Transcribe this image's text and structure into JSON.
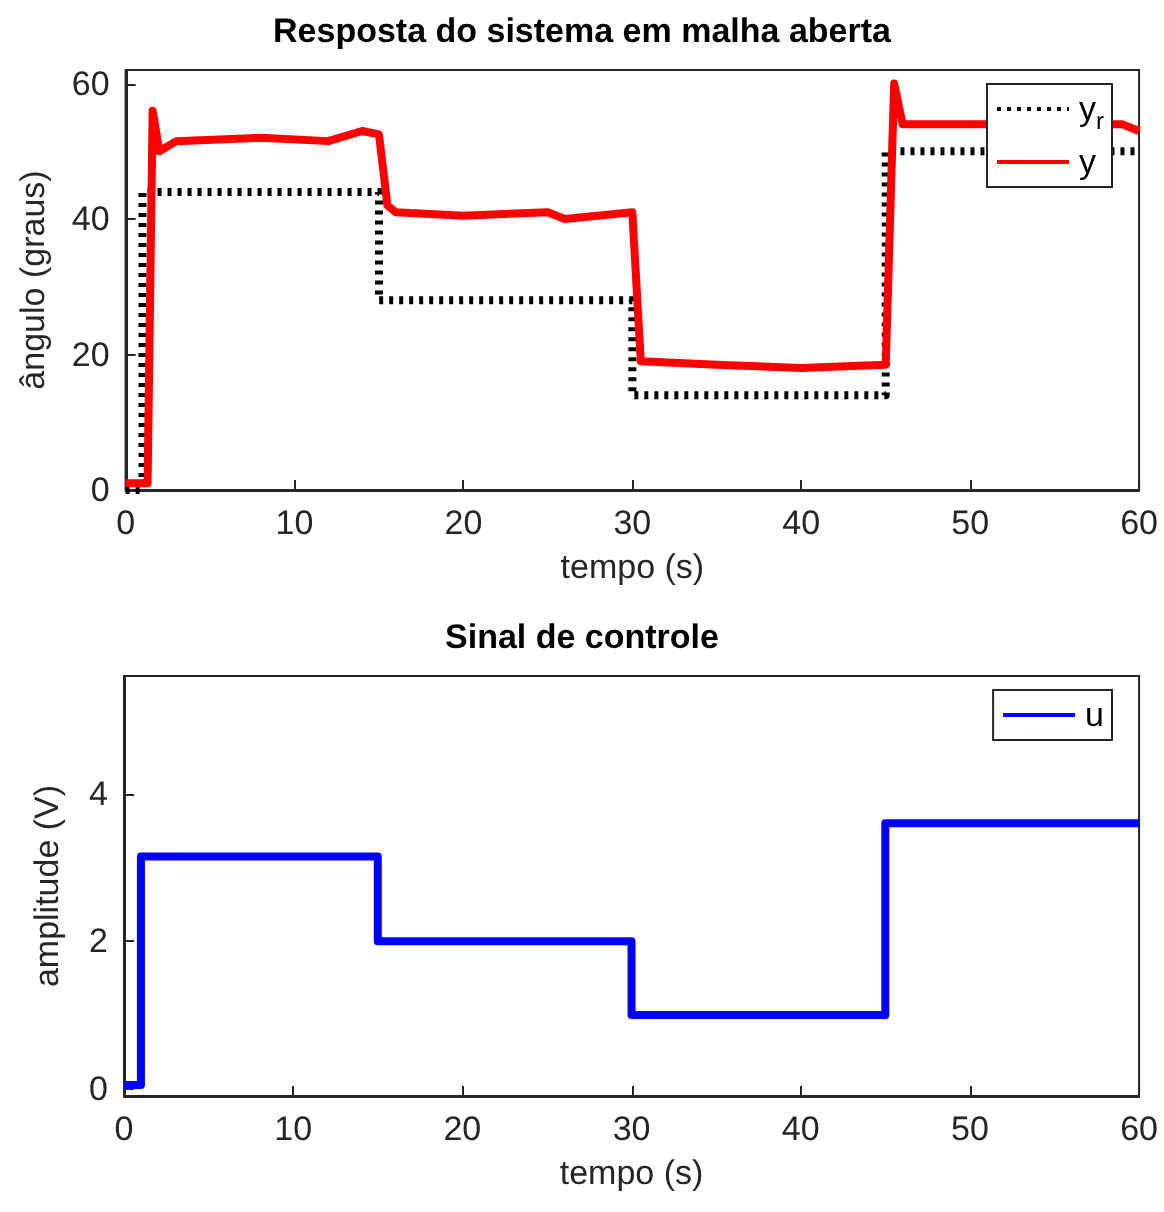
{
  "chart_data": [
    {
      "type": "line",
      "title": "Resposta do sistema em malha aberta",
      "xlabel": "tempo (s)",
      "ylabel": "ângulo (graus)",
      "xlim": [
        0,
        60
      ],
      "xticks": [
        0,
        10,
        20,
        30,
        40,
        50,
        60
      ],
      "ylim": [
        0,
        62
      ],
      "yticks": [
        0,
        20,
        40,
        60
      ],
      "legend": "top right",
      "grid": false,
      "series": [
        {
          "name": "y$_{r}$",
          "type": "step",
          "color": "#000000",
          "line_style": "dotted",
          "x": [
            0,
            1,
            15,
            30,
            45,
            60
          ],
          "values": [
            0,
            44,
            28,
            14,
            50,
            50
          ]
        },
        {
          "name": "y",
          "color": "#ff0000",
          "line_style": "solid",
          "x": [
            0,
            1.3,
            1.6,
            2,
            3,
            8,
            12,
            14,
            15,
            15.5,
            16,
            20,
            25,
            26,
            30,
            30.5,
            35,
            40,
            45,
            45.5,
            46,
            48,
            59,
            60
          ],
          "values": [
            1,
            1,
            56,
            50,
            51.5,
            52,
            51.5,
            53,
            52.5,
            42,
            41,
            40.5,
            41,
            40,
            41,
            19,
            18.5,
            18,
            18.5,
            60,
            54,
            54,
            54,
            53
          ]
        }
      ]
    },
    {
      "type": "step",
      "title": "Sinal de controle",
      "xlabel": "tempo (s)",
      "ylabel": "amplitude (V)",
      "xlim": [
        0,
        60
      ],
      "xticks": [
        0,
        10,
        20,
        30,
        40,
        50,
        60
      ],
      "ylim": [
        -0.1,
        5.6
      ],
      "yticks": [
        0,
        2,
        4
      ],
      "legend": "top right",
      "grid": false,
      "series": [
        {
          "name": "u",
          "color": "#0000ff",
          "line_style": "solid",
          "x": [
            0,
            1,
            15,
            30,
            45,
            60
          ],
          "values": [
            0.05,
            3.15,
            2,
            1,
            3.6,
            3.6
          ]
        }
      ]
    }
  ]
}
